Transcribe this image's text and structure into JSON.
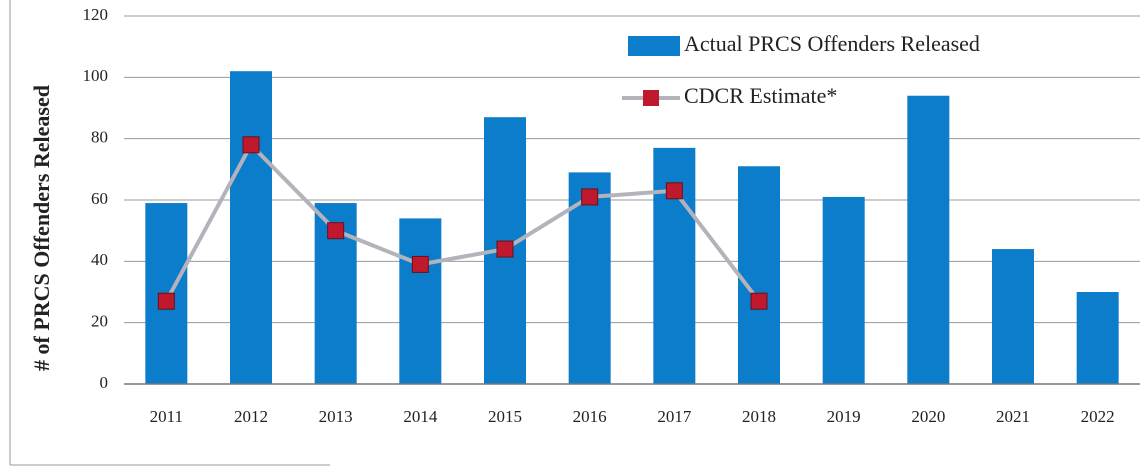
{
  "chart_data": {
    "type": "bar",
    "y_label": "# of PRCS Offenders Released",
    "categories": [
      "2011",
      "2012",
      "2013",
      "2014",
      "2015",
      "2016",
      "2017",
      "2018",
      "2019",
      "2020",
      "2021",
      "2022"
    ],
    "series": [
      {
        "name": "Actual PRCS Offenders Released",
        "type": "bar",
        "color": "#0b7dcb",
        "values": [
          59,
          102,
          59,
          54,
          87,
          69,
          77,
          71,
          61,
          94,
          44,
          30
        ]
      },
      {
        "name": "CDCR Estimate*",
        "type": "line",
        "color": "#b4b2ba",
        "marker_color": "#c0182c",
        "values": [
          27,
          78,
          50,
          39,
          44,
          61,
          63,
          27,
          null,
          null,
          null,
          null
        ]
      }
    ],
    "ylim": [
      0,
      120
    ],
    "yticks": [
      0,
      20,
      40,
      60,
      80,
      100,
      120
    ],
    "grid": true
  }
}
